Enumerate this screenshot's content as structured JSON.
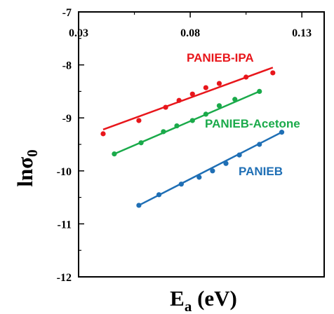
{
  "chart_data": {
    "type": "scatter",
    "x_axis": {
      "label_main": "E",
      "label_sub": "a",
      "label_unit": " (eV)",
      "range": [
        0.03,
        0.14
      ],
      "ticks": [
        0.03,
        0.08,
        0.13
      ],
      "tick_labels": [
        "0.03",
        "0.08",
        "0.13"
      ],
      "position": "top"
    },
    "y_axis": {
      "label_main": "lnσ",
      "label_sub": "0",
      "range": [
        -12,
        -7
      ],
      "ticks": [
        -7,
        -8,
        -9,
        -10,
        -11,
        -12
      ],
      "tick_labels": [
        "-7",
        "-8",
        "-9",
        "-10",
        "-11",
        "-12"
      ]
    },
    "series": [
      {
        "name": "PANIEB-IPA",
        "color": "#e8161b",
        "points": [
          [
            0.041,
            -9.3
          ],
          [
            0.057,
            -9.05
          ],
          [
            0.069,
            -8.8
          ],
          [
            0.075,
            -8.67
          ],
          [
            0.081,
            -8.55
          ],
          [
            0.087,
            -8.43
          ],
          [
            0.093,
            -8.35
          ],
          [
            0.105,
            -8.23
          ],
          [
            0.117,
            -8.15
          ]
        ],
        "fit": [
          [
            0.041,
            -9.22
          ],
          [
            0.117,
            -8.05
          ]
        ]
      },
      {
        "name": "PANIEB-Acetone",
        "color": "#1aaa4a",
        "points": [
          [
            0.046,
            -9.68
          ],
          [
            0.058,
            -9.47
          ],
          [
            0.068,
            -9.26
          ],
          [
            0.074,
            -9.15
          ],
          [
            0.081,
            -9.05
          ],
          [
            0.087,
            -8.93
          ],
          [
            0.093,
            -8.77
          ],
          [
            0.1,
            -8.65
          ],
          [
            0.111,
            -8.5
          ]
        ],
        "fit": [
          [
            0.046,
            -9.68
          ],
          [
            0.111,
            -8.5
          ]
        ]
      },
      {
        "name": "PANIEB",
        "color": "#1f6fb5",
        "points": [
          [
            0.057,
            -10.65
          ],
          [
            0.066,
            -10.45
          ],
          [
            0.076,
            -10.25
          ],
          [
            0.084,
            -10.12
          ],
          [
            0.09,
            -10.0
          ],
          [
            0.096,
            -9.86
          ],
          [
            0.102,
            -9.7
          ],
          [
            0.111,
            -9.5
          ],
          [
            0.121,
            -9.27
          ]
        ],
        "fit": [
          [
            0.057,
            -10.65
          ],
          [
            0.121,
            -9.27
          ]
        ]
      }
    ],
    "labels_on_chart": [
      "PANIEB-IPA",
      "PANIEB-Acetone",
      "PANIEB"
    ],
    "grid": false,
    "legend": "none (inline labels)"
  }
}
